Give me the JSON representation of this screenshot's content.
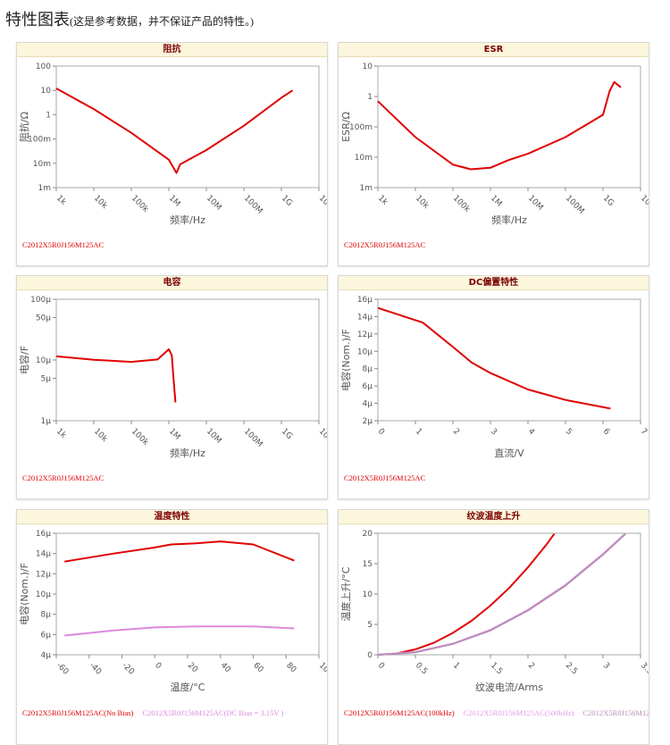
{
  "header": {
    "title": "特性图表",
    "note": "(这是参考数据，并不保证产品的特性。)"
  },
  "chart_data": [
    {
      "type": "line",
      "title": "阻抗",
      "xlabel": "频率/Hz",
      "ylabel": "阻抗/Ω",
      "xscale": "log",
      "yscale": "log",
      "xlim": [
        1000,
        10000000000
      ],
      "ylim": [
        0.001,
        100
      ],
      "xticks": [
        {
          "value": 1000,
          "label": "1k"
        },
        {
          "value": 10000,
          "label": "10k"
        },
        {
          "value": 100000,
          "label": "100k"
        },
        {
          "value": 1000000,
          "label": "1M"
        },
        {
          "value": 10000000,
          "label": "10M"
        },
        {
          "value": 100000000,
          "label": "100M"
        },
        {
          "value": 1000000000,
          "label": "1G"
        },
        {
          "value": 10000000000,
          "label": "10G"
        }
      ],
      "yticks": [
        {
          "value": 0.001,
          "label": "1m"
        },
        {
          "value": 0.01,
          "label": "10m"
        },
        {
          "value": 0.1,
          "label": "100m"
        },
        1,
        10,
        100
      ],
      "series": [
        {
          "name": "C2012X5R0J156M125AC",
          "color": "#e00000",
          "x": [
            1000,
            10000,
            100000,
            1000000,
            1600000,
            2000000,
            10000000,
            100000000,
            1000000000,
            2000000000
          ],
          "values": [
            12,
            1.7,
            0.18,
            0.014,
            0.004,
            0.009,
            0.035,
            0.35,
            5,
            10
          ]
        }
      ]
    },
    {
      "type": "line",
      "title": "ESR",
      "xlabel": "频率/Hz",
      "ylabel": "ESR/Ω",
      "xscale": "log",
      "yscale": "log",
      "xlim": [
        1000,
        10000000000
      ],
      "ylim": [
        0.001,
        10
      ],
      "xticks": [
        {
          "value": 1000,
          "label": "1k"
        },
        {
          "value": 10000,
          "label": "10k"
        },
        {
          "value": 100000,
          "label": "100k"
        },
        {
          "value": 1000000,
          "label": "1M"
        },
        {
          "value": 10000000,
          "label": "10M"
        },
        {
          "value": 100000000,
          "label": "100M"
        },
        {
          "value": 1000000000,
          "label": "1G"
        },
        {
          "value": 10000000000,
          "label": "10G"
        }
      ],
      "yticks": [
        {
          "value": 0.001,
          "label": "1m"
        },
        {
          "value": 0.01,
          "label": "10m"
        },
        {
          "value": 0.1,
          "label": "100m"
        },
        1,
        10
      ],
      "series": [
        {
          "name": "C2012X5R0J156M125AC",
          "color": "#e00000",
          "x": [
            1000,
            10000,
            100000,
            300000,
            1000000,
            3000000,
            10000000,
            100000000,
            1000000000,
            1500000000,
            2000000000,
            3000000000
          ],
          "values": [
            0.7,
            0.046,
            0.0057,
            0.004,
            0.0045,
            0.008,
            0.013,
            0.046,
            0.25,
            1.5,
            3,
            2
          ]
        }
      ]
    },
    {
      "type": "line",
      "title": "电容",
      "xlabel": "频率/Hz",
      "ylabel": "电容/F",
      "xscale": "log",
      "yscale": "log",
      "xlim": [
        1000,
        10000000000
      ],
      "ylim": [
        1e-06,
        0.0001
      ],
      "xticks": [
        {
          "value": 1000,
          "label": "1k"
        },
        {
          "value": 10000,
          "label": "10k"
        },
        {
          "value": 100000,
          "label": "100k"
        },
        {
          "value": 1000000,
          "label": "1M"
        },
        {
          "value": 10000000,
          "label": "10M"
        },
        {
          "value": 100000000,
          "label": "100M"
        },
        {
          "value": 1000000000,
          "label": "1G"
        },
        {
          "value": 10000000000,
          "label": "10G"
        }
      ],
      "yticks": [
        {
          "value": 1e-06,
          "label": "1µ"
        },
        {
          "value": 5e-06,
          "label": "5µ"
        },
        {
          "value": 1e-05,
          "label": "10µ"
        },
        {
          "value": 5e-05,
          "label": "50µ"
        },
        {
          "value": 0.0001,
          "label": "100µ"
        }
      ],
      "series": [
        {
          "name": "C2012X5R0J156M125AC",
          "color": "#e00000",
          "x": [
            1000,
            10000,
            100000,
            500000,
            1000000,
            1200000,
            1300000,
            1500000
          ],
          "values": [
            1.15e-05,
            1.01e-05,
            9.3e-06,
            1.02e-05,
            1.5e-05,
            1.2e-05,
            6e-06,
            2e-06
          ]
        }
      ]
    },
    {
      "type": "line",
      "title": "DC偏置特性",
      "xlabel": "直流/V",
      "ylabel": "电容(Nom.)/F",
      "xlim": [
        0,
        7
      ],
      "ylim": [
        2e-06,
        1.6e-05
      ],
      "xticks": [
        0,
        1,
        2,
        3,
        4,
        5,
        6,
        7
      ],
      "yticks": [
        {
          "value": 2e-06,
          "label": "2µ"
        },
        {
          "value": 4e-06,
          "label": "4µ"
        },
        {
          "value": 6e-06,
          "label": "6µ"
        },
        {
          "value": 8e-06,
          "label": "8µ"
        },
        {
          "value": 1e-05,
          "label": "10µ"
        },
        {
          "value": 1.2e-05,
          "label": "12µ"
        },
        {
          "value": 1.4e-05,
          "label": "14µ"
        },
        {
          "value": 1.6e-05,
          "label": "16µ"
        }
      ],
      "series": [
        {
          "name": "C2012X5R0J156M125AC",
          "color": "#e00000",
          "x": [
            0,
            1.2,
            2,
            2.5,
            3,
            4,
            5,
            6.2
          ],
          "values": [
            1.5e-05,
            1.33e-05,
            1.05e-05,
            8.7e-06,
            7.5e-06,
            5.6e-06,
            4.4e-06,
            3.4e-06
          ]
        }
      ]
    },
    {
      "type": "line",
      "title": "温度特性",
      "xlabel": "温度/°C",
      "ylabel": "电容(Nom.)/F",
      "xlim": [
        -60,
        100
      ],
      "ylim": [
        4e-06,
        1.6e-05
      ],
      "xticks": [
        -60,
        -40,
        -20,
        0,
        20,
        40,
        60,
        80,
        100
      ],
      "yticks": [
        {
          "value": 4e-06,
          "label": "4µ"
        },
        {
          "value": 6e-06,
          "label": "6µ"
        },
        {
          "value": 8e-06,
          "label": "8µ"
        },
        {
          "value": 1e-05,
          "label": "10µ"
        },
        {
          "value": 1.2e-05,
          "label": "12µ"
        },
        {
          "value": 1.4e-05,
          "label": "14µ"
        },
        {
          "value": 1.6e-05,
          "label": "16µ"
        }
      ],
      "series": [
        {
          "name": "C2012X5R0J156M125AC(No Bias)",
          "color": "#e00000",
          "x": [
            -55,
            -25,
            0,
            10,
            25,
            40,
            60,
            85
          ],
          "values": [
            1.32e-05,
            1.4e-05,
            1.46e-05,
            1.49e-05,
            1.5e-05,
            1.52e-05,
            1.49e-05,
            1.33e-05
          ]
        },
        {
          "name": "C2012X5R0J156M125AC(DC Bias = 3.15V )",
          "color": "#dd88dd",
          "x": [
            -55,
            -25,
            0,
            25,
            60,
            85
          ],
          "values": [
            5.9e-06,
            6.4e-06,
            6.7e-06,
            6.8e-06,
            6.8e-06,
            6.6e-06
          ]
        }
      ]
    },
    {
      "type": "line",
      "title": "纹波温度上升",
      "xlabel": "纹波电流/Arms",
      "ylabel": "温度上升/°C",
      "xlim": [
        0,
        3.5
      ],
      "ylim": [
        0,
        20
      ],
      "xticks": [
        0,
        0.5,
        1,
        1.5,
        2,
        2.5,
        3,
        3.5
      ],
      "yticks": [
        0,
        5,
        10,
        15,
        20
      ],
      "series": [
        {
          "name": "C2012X5R0J156M125AC(100kHz)",
          "color": "#e00000",
          "x": [
            0,
            0.25,
            0.5,
            0.75,
            1,
            1.25,
            1.5,
            1.75,
            2,
            2.25,
            2.35
          ],
          "values": [
            0,
            0.2,
            0.9,
            2,
            3.6,
            5.6,
            8.1,
            11,
            14.4,
            18.2,
            19.9
          ]
        },
        {
          "name": "C2012X5R0J156M125AC(500kHz)",
          "color": "#e49be4",
          "x": [
            0,
            0.5,
            1,
            1.5,
            2,
            2.5,
            3,
            3.3
          ],
          "values": [
            0,
            0.46,
            1.84,
            4.1,
            7.4,
            11.5,
            16.6,
            20
          ]
        },
        {
          "name": "C2012X5R0J156M125AC(1MHz)",
          "color": "#b98db9",
          "x": [
            0,
            0.5,
            1,
            1.5,
            2,
            2.5,
            3,
            3.3
          ],
          "values": [
            0,
            0.4,
            1.8,
            4,
            7.3,
            11.4,
            16.5,
            19.9
          ]
        }
      ]
    }
  ]
}
